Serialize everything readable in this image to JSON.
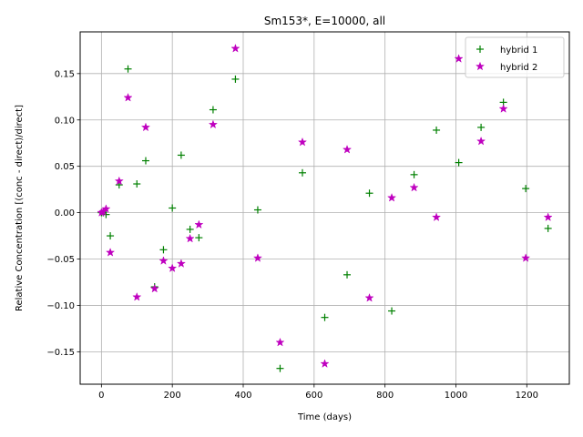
{
  "chart_data": {
    "type": "scatter",
    "title": "Sm153*, E=10000, all",
    "xlabel": "Time (days)",
    "ylabel": "Relative Concentration [(conc - direct)/direct]",
    "xlim": [
      -60,
      1320
    ],
    "ylim": [
      -0.185,
      0.195
    ],
    "xticks": [
      0,
      200,
      400,
      600,
      800,
      1000,
      1200
    ],
    "xtick_labels": [
      "0",
      "200",
      "400",
      "600",
      "800",
      "1000",
      "1200"
    ],
    "yticks": [
      -0.15,
      -0.1,
      -0.05,
      0.0,
      0.05,
      0.1,
      0.15
    ],
    "ytick_labels": [
      "−0.15",
      "−0.10",
      "−0.05",
      "0.00",
      "0.05",
      "0.10",
      "0.15"
    ],
    "grid": true,
    "legend_position": "top-right",
    "series": [
      {
        "name": "hybrid 1",
        "marker": "plus",
        "color": "#008000",
        "x": [
          0,
          5,
          13,
          25,
          50,
          75,
          100,
          125,
          150,
          175,
          200,
          225,
          250,
          275,
          315,
          378,
          441,
          504,
          567,
          630,
          693,
          756,
          819,
          882,
          945,
          1008,
          1071,
          1134,
          1197,
          1260
        ],
        "y": [
          0.0,
          0.0,
          -0.002,
          -0.025,
          0.03,
          0.155,
          0.031,
          0.056,
          -0.08,
          -0.04,
          0.005,
          0.062,
          -0.018,
          -0.027,
          0.111,
          0.144,
          0.003,
          -0.168,
          0.043,
          -0.113,
          -0.067,
          0.021,
          -0.106,
          0.041,
          0.089,
          0.054,
          0.092,
          0.119,
          0.026,
          -0.017
        ]
      },
      {
        "name": "hybrid 2",
        "marker": "star",
        "color": "#bf00bf",
        "x": [
          0,
          5,
          13,
          25,
          50,
          75,
          100,
          125,
          150,
          175,
          200,
          225,
          250,
          275,
          315,
          378,
          441,
          504,
          567,
          630,
          693,
          756,
          819,
          882,
          945,
          1008,
          1071,
          1134,
          1197,
          1260
        ],
        "y": [
          0.0,
          0.001,
          0.004,
          -0.043,
          0.034,
          0.124,
          -0.091,
          0.092,
          -0.082,
          -0.052,
          -0.06,
          -0.055,
          -0.028,
          -0.013,
          0.095,
          0.177,
          -0.049,
          -0.14,
          0.076,
          -0.163,
          0.068,
          -0.092,
          0.016,
          0.027,
          -0.005,
          0.166,
          0.077,
          0.112,
          -0.049,
          -0.005
        ]
      }
    ]
  }
}
